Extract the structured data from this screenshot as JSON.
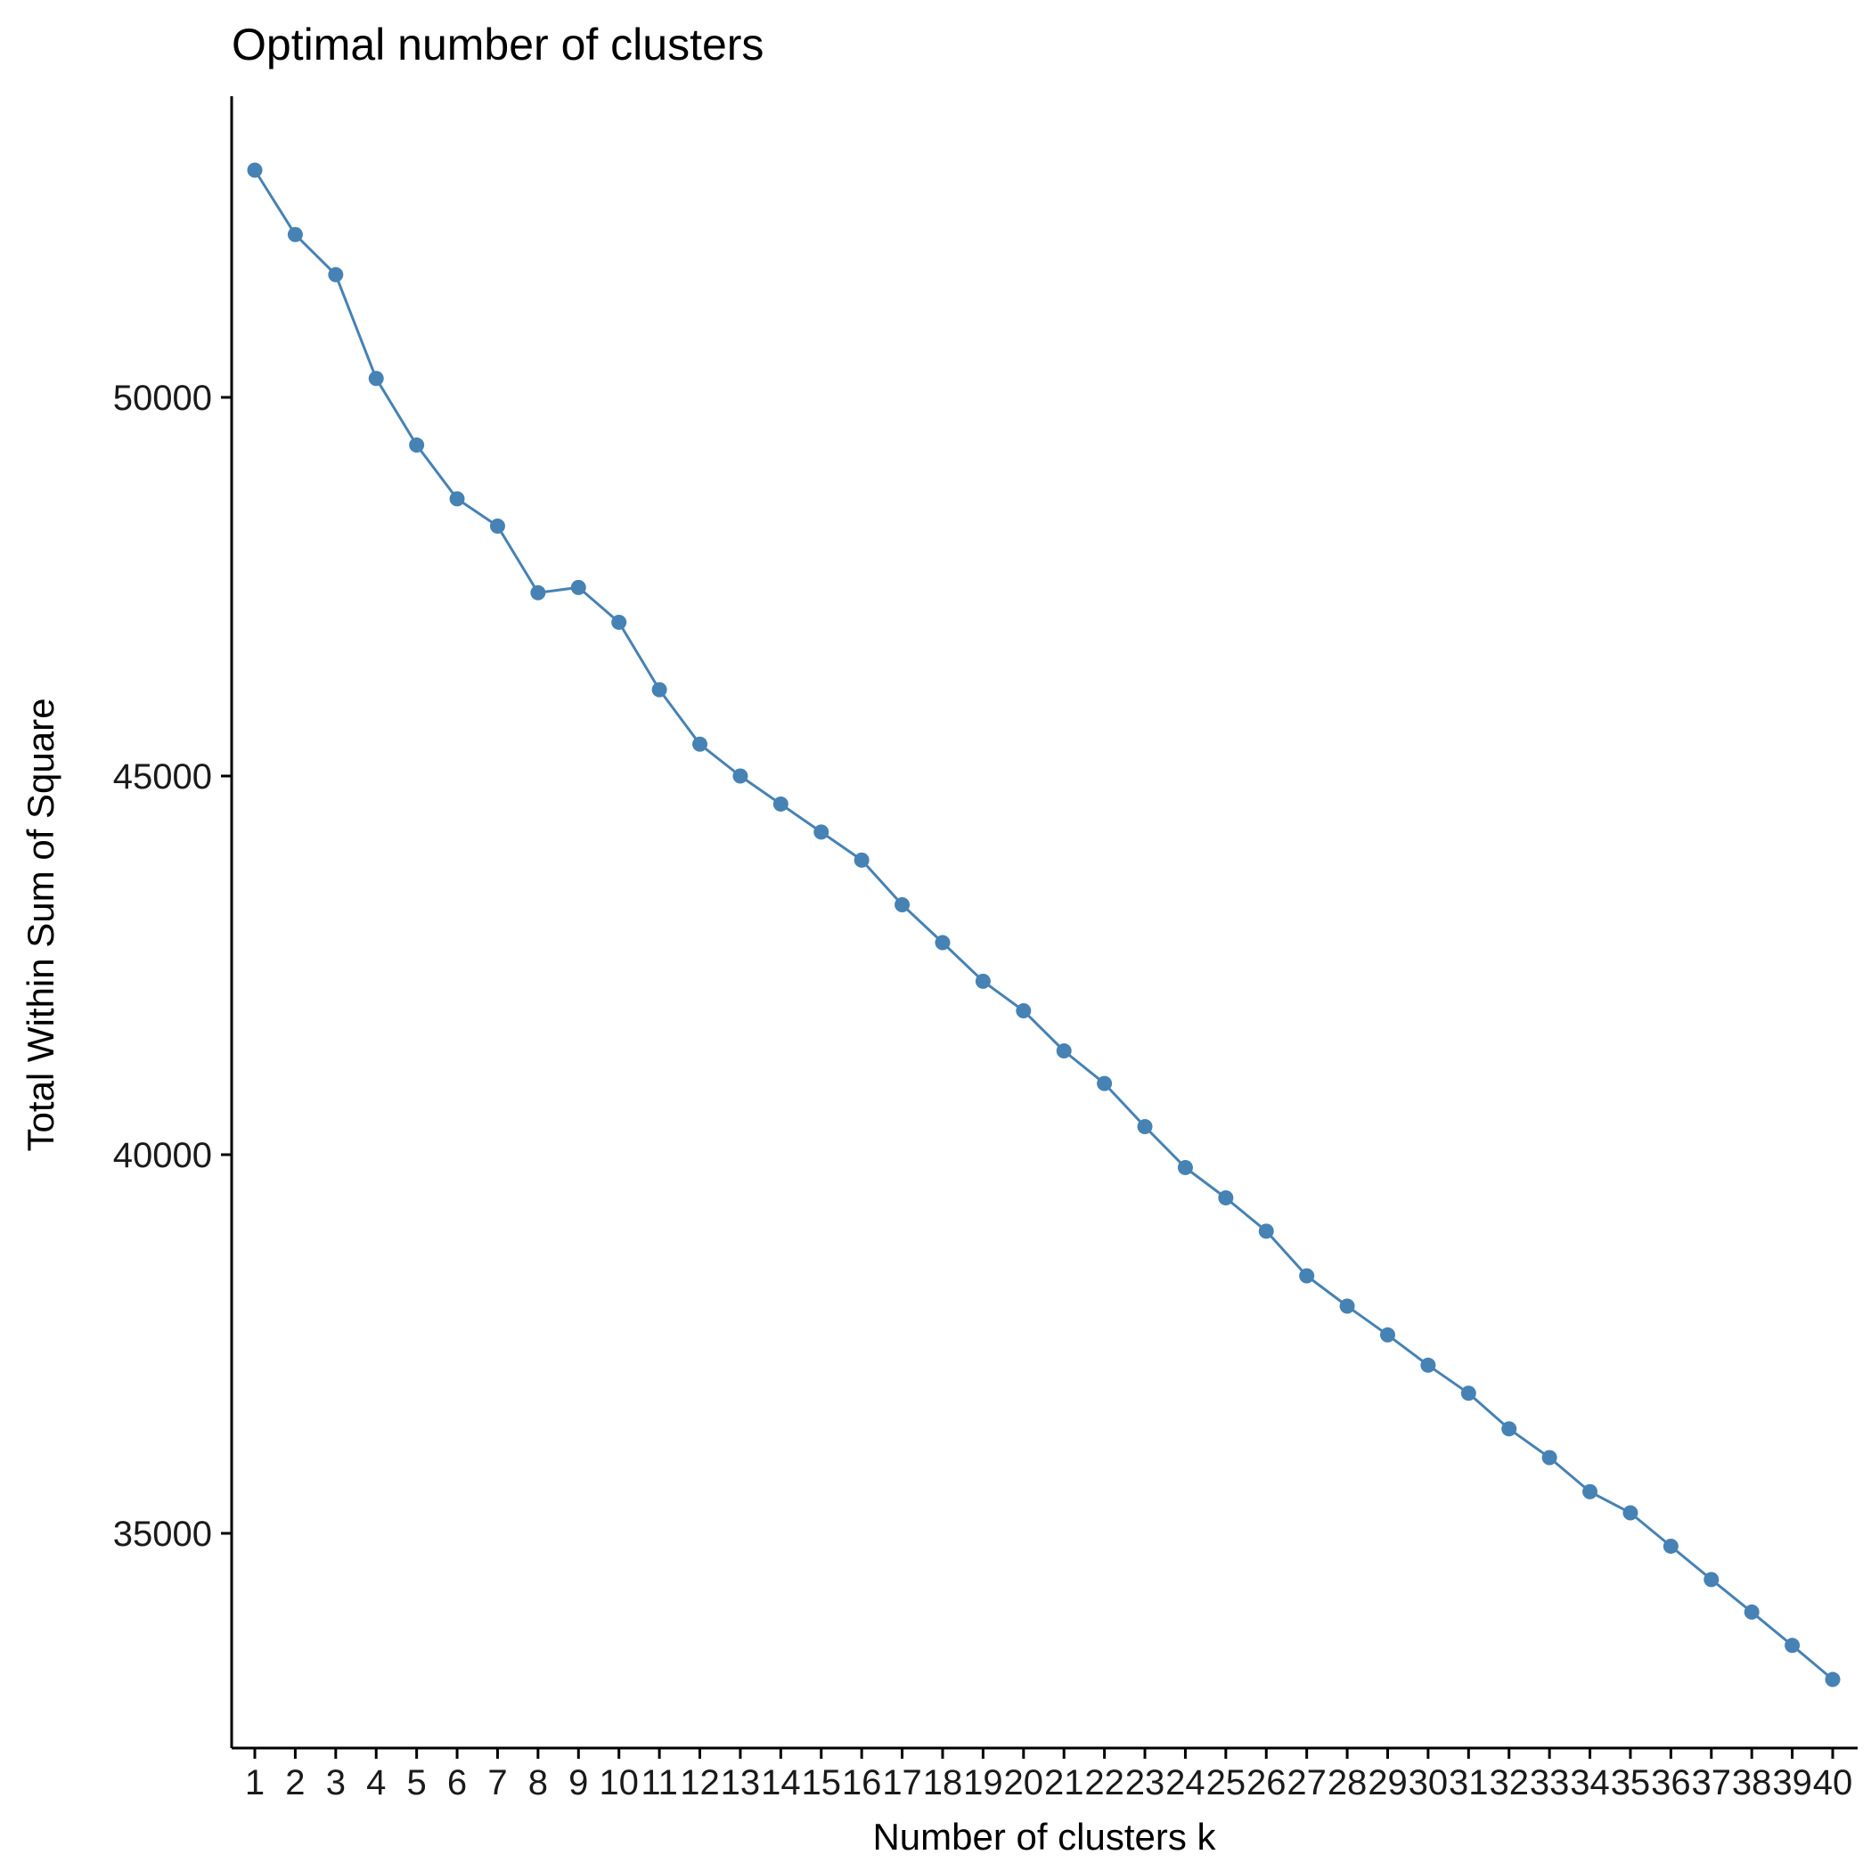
{
  "chart_data": {
    "type": "line",
    "title": "Optimal number of clusters",
    "xlabel": "Number of clusters k",
    "ylabel": "Total Within Sum of Square",
    "categories": [
      "1",
      "2",
      "3",
      "4",
      "5",
      "6",
      "7",
      "8",
      "9",
      "10",
      "11",
      "12",
      "13",
      "14",
      "15",
      "16",
      "17",
      "18",
      "19",
      "20",
      "21",
      "22",
      "23",
      "24",
      "25",
      "26",
      "27",
      "28",
      "29",
      "30",
      "31",
      "32",
      "33",
      "34",
      "35",
      "36",
      "37",
      "38",
      "39",
      "40"
    ],
    "values": [
      53000,
      52150,
      51620,
      50250,
      49370,
      48660,
      48300,
      47420,
      47490,
      47030,
      46140,
      45420,
      45000,
      44630,
      44260,
      43890,
      43300,
      42800,
      42290,
      41900,
      41370,
      40940,
      40370,
      39830,
      39430,
      38990,
      38400,
      38000,
      37620,
      37220,
      36850,
      36380,
      36000,
      35550,
      35270,
      34830,
      34390,
      33960,
      33520,
      33070
    ],
    "yticks": [
      35000,
      40000,
      45000,
      50000
    ],
    "ytick_labels": [
      "35000",
      "40000",
      "45000",
      "50000"
    ],
    "ylim": [
      32150,
      54000
    ],
    "line_color": "#4682B4",
    "marker_color": "#4682B4",
    "grid": false,
    "legend": "none"
  }
}
